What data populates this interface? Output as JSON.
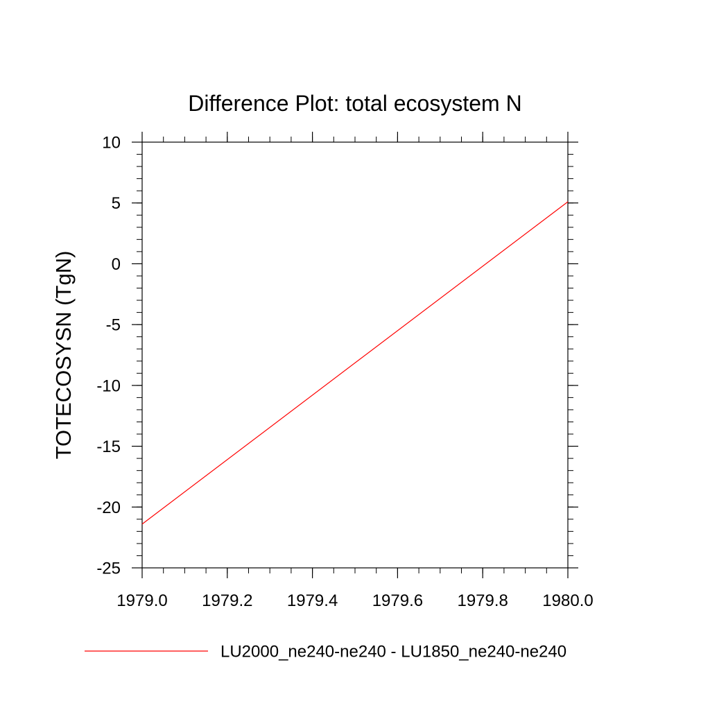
{
  "chart_data": {
    "type": "line",
    "title": "Difference Plot: total ecosystem N",
    "xlabel": "",
    "ylabel": "TOTECOSYSN  (TgN)",
    "xlim": [
      1979.0,
      1980.0
    ],
    "ylim": [
      -25,
      10
    ],
    "x_ticks": [
      1979.0,
      1979.2,
      1979.4,
      1979.6,
      1979.8,
      1980.0
    ],
    "x_tick_labels": [
      "1979.0",
      "1979.2",
      "1979.4",
      "1979.6",
      "1979.8",
      "1980.0"
    ],
    "x_minor_step": 0.05,
    "y_ticks": [
      -25,
      -20,
      -15,
      -10,
      -5,
      0,
      5,
      10
    ],
    "y_tick_labels": [
      "-25",
      "-20",
      "-15",
      "-10",
      "-5",
      "0",
      "5",
      "10"
    ],
    "y_minor_step": 1,
    "grid": false,
    "legend_position": "bottom",
    "series": [
      {
        "name": "LU2000_ne240-ne240 - LU1850_ne240-ne240",
        "color": "#ff0000",
        "x": [
          1979.0,
          1980.0
        ],
        "y": [
          -21.4,
          5.1
        ]
      }
    ]
  }
}
